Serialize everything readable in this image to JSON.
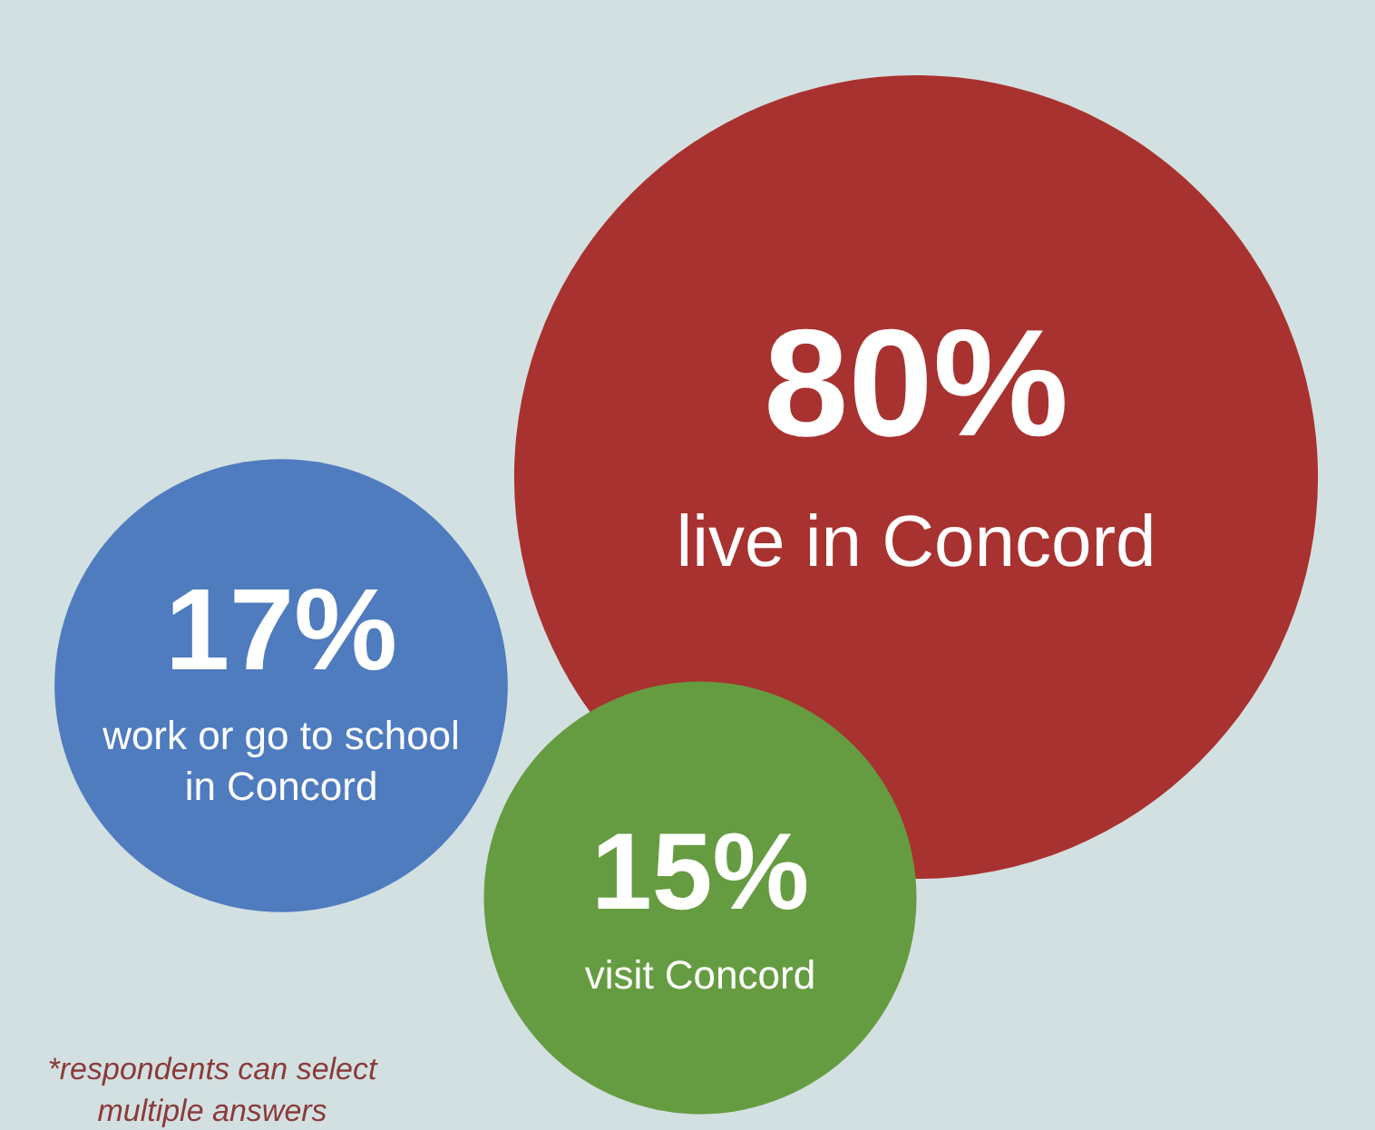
{
  "chart_data": {
    "type": "other",
    "categories": [
      "live in Concord",
      "work or go to school in Concord",
      "visit Concord"
    ],
    "values": [
      80,
      17,
      15
    ],
    "value_labels": [
      "80%",
      "17%",
      "15%"
    ],
    "colors": [
      "#a8322f",
      "#4f7bbf",
      "#669c41"
    ],
    "annotations": [
      "*respondents can select multiple answers"
    ]
  }
}
